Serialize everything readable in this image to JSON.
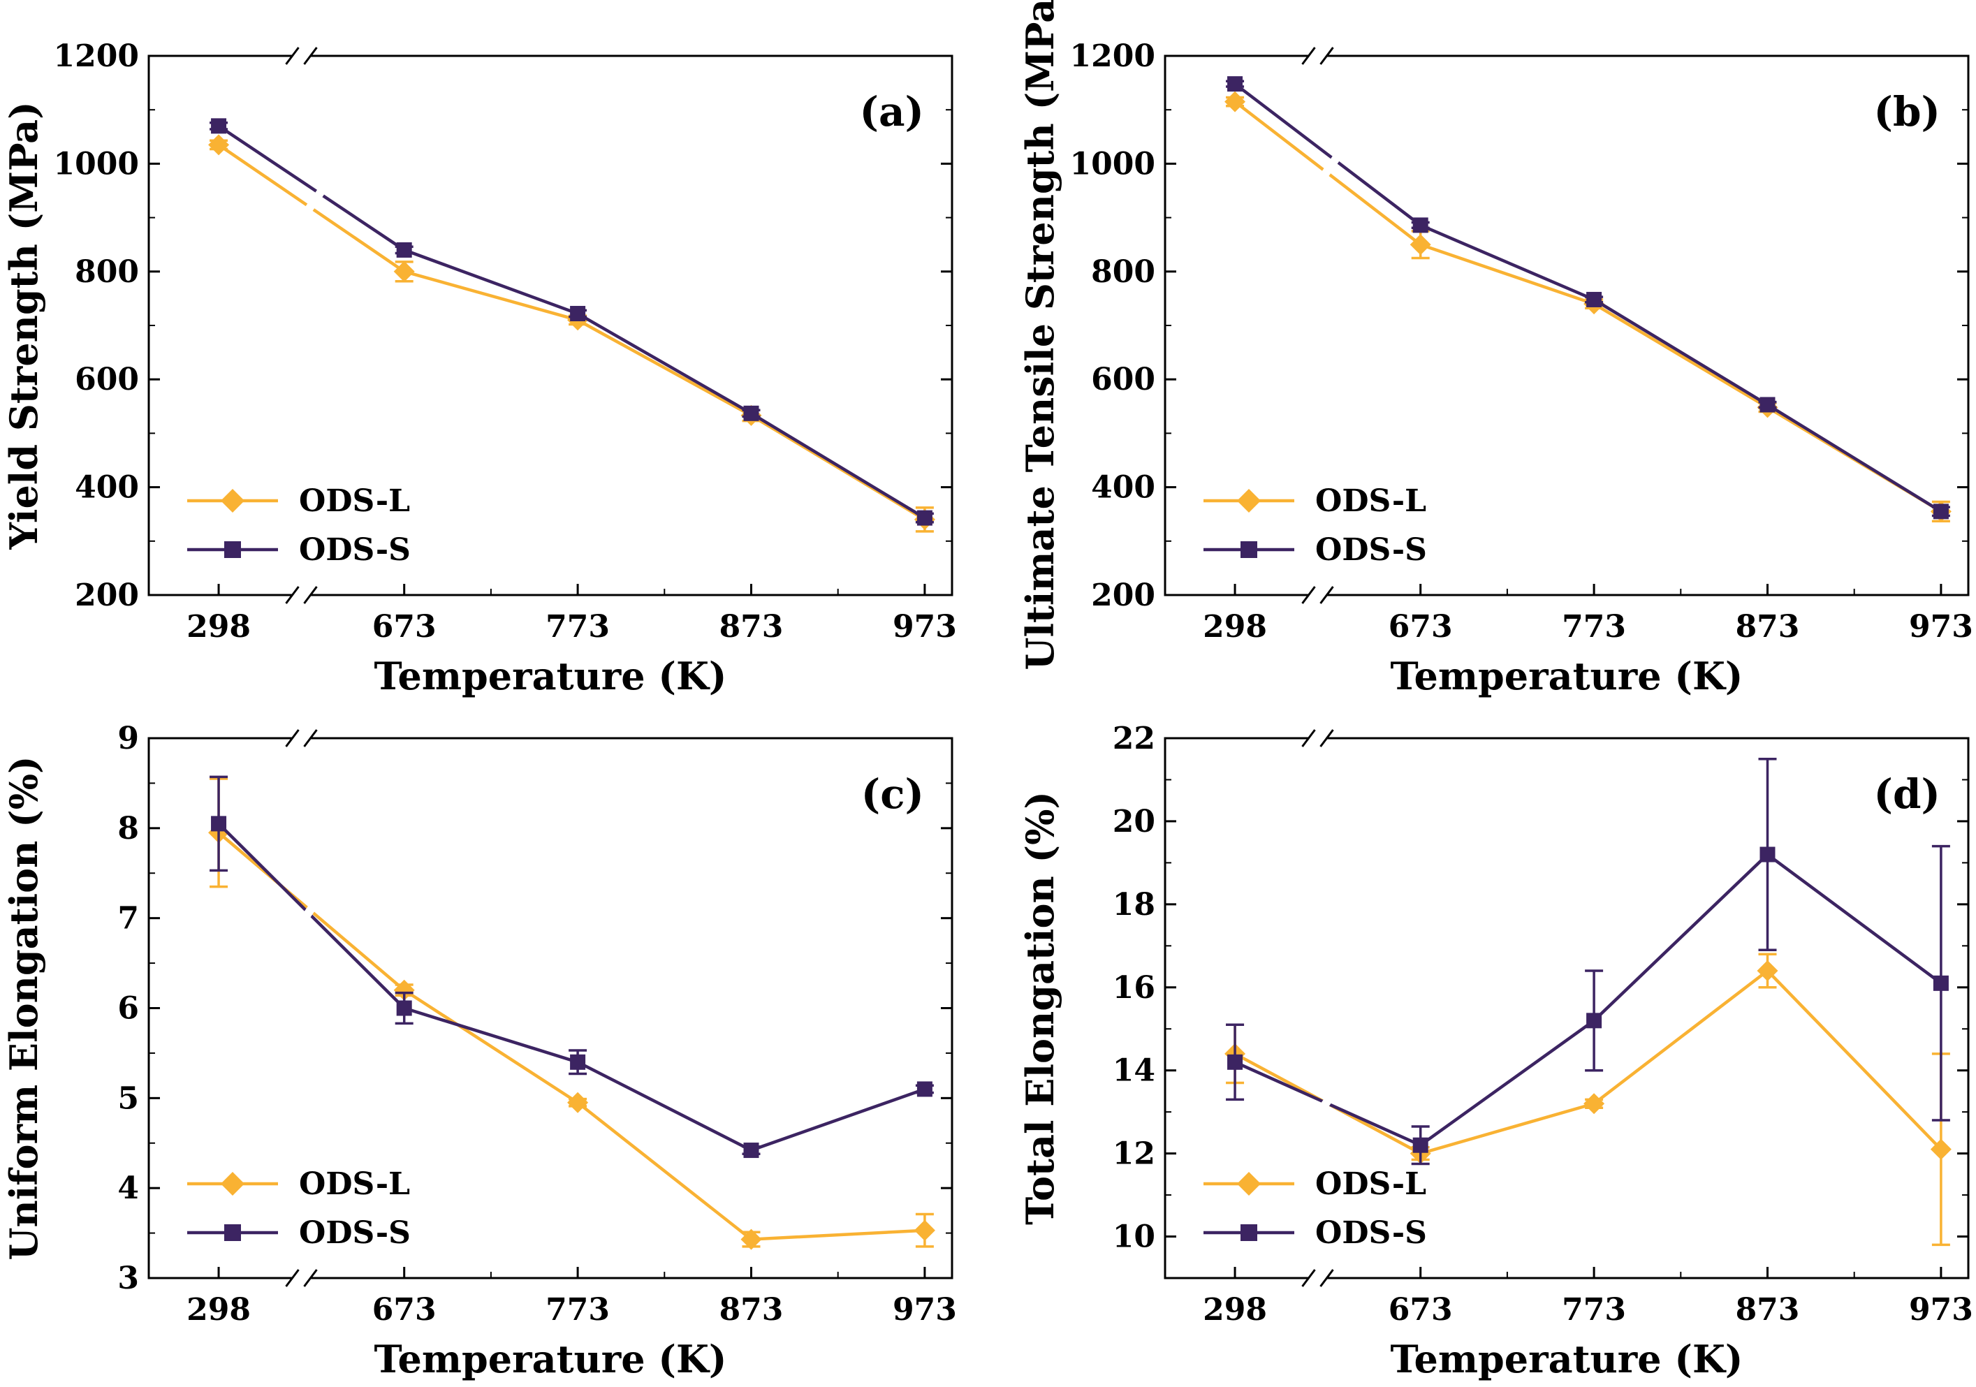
{
  "chart_data": [
    {
      "panel": "(a)",
      "type": "line",
      "xlabel": "Temperature (K)",
      "ylabel": "Yield Strength (MPa)",
      "categories": [
        "298",
        "673",
        "773",
        "873",
        "973"
      ],
      "ylim": [
        200,
        1200
      ],
      "yticks": [
        "200",
        "400",
        "600",
        "800",
        "1000",
        "1200"
      ],
      "series": [
        {
          "name": "ODS-L",
          "marker": "diamond",
          "values": [
            1035,
            800,
            710,
            533,
            340
          ],
          "errors": [
            8,
            18,
            8,
            10,
            22
          ]
        },
        {
          "name": "ODS-S",
          "marker": "square",
          "values": [
            1070,
            840,
            722,
            537,
            343
          ],
          "errors": [
            6,
            6,
            6,
            6,
            8
          ]
        }
      ],
      "legend_position": "bottom-left"
    },
    {
      "panel": "(b)",
      "type": "line",
      "xlabel": "Temperature (K)",
      "ylabel": "Ultimate Tensile Strength (MPa)",
      "categories": [
        "298",
        "673",
        "773",
        "873",
        "973"
      ],
      "ylim": [
        200,
        1200
      ],
      "yticks": [
        "200",
        "400",
        "600",
        "800",
        "1000",
        "1200"
      ],
      "series": [
        {
          "name": "ODS-L",
          "marker": "diamond",
          "values": [
            1115,
            850,
            740,
            548,
            355
          ],
          "errors": [
            8,
            25,
            8,
            8,
            18
          ]
        },
        {
          "name": "ODS-S",
          "marker": "square",
          "values": [
            1148,
            886,
            748,
            553,
            355
          ],
          "errors": [
            5,
            5,
            5,
            5,
            8
          ]
        }
      ],
      "legend_position": "bottom-left"
    },
    {
      "panel": "(c)",
      "type": "line",
      "xlabel": "Temperature (K)",
      "ylabel": "Uniform Elongation (%)",
      "categories": [
        "298",
        "673",
        "773",
        "873",
        "973"
      ],
      "ylim": [
        3,
        9
      ],
      "yticks": [
        "3",
        "4",
        "5",
        "6",
        "7",
        "8",
        "9"
      ],
      "series": [
        {
          "name": "ODS-L",
          "marker": "diamond",
          "values": [
            7.95,
            6.2,
            4.95,
            3.43,
            3.53
          ],
          "errors": [
            0.6,
            0.06,
            0.04,
            0.08,
            0.18
          ]
        },
        {
          "name": "ODS-S",
          "marker": "square",
          "values": [
            8.05,
            6.0,
            5.4,
            4.42,
            5.1
          ],
          "errors": [
            0.52,
            0.17,
            0.13,
            0.04,
            0.04
          ]
        }
      ],
      "legend_position": "bottom-left"
    },
    {
      "panel": "(d)",
      "type": "line",
      "xlabel": "Temperature (K)",
      "ylabel": "Total Elongation (%)",
      "categories": [
        "298",
        "673",
        "773",
        "873",
        "973"
      ],
      "ylim": [
        9,
        22
      ],
      "yticks": [
        "10",
        "12",
        "14",
        "16",
        "18",
        "20",
        "22"
      ],
      "series": [
        {
          "name": "ODS-L",
          "marker": "diamond",
          "values": [
            14.4,
            12.0,
            13.2,
            16.4,
            12.1
          ],
          "errors": [
            0.7,
            0.15,
            0.1,
            0.4,
            2.3
          ]
        },
        {
          "name": "ODS-S",
          "marker": "square",
          "values": [
            14.2,
            12.2,
            15.2,
            19.2,
            16.1
          ],
          "errors": [
            0.9,
            0.45,
            1.2,
            2.3,
            3.3
          ]
        }
      ],
      "legend_position": "bottom-left"
    }
  ],
  "colors": {
    "ods_l": "#F9B233",
    "ods_s": "#3C2462",
    "axis": "#000000"
  }
}
